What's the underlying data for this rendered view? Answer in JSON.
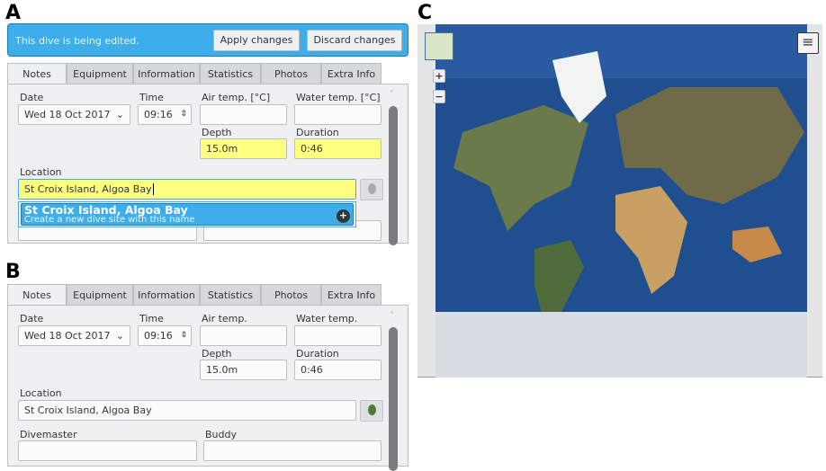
{
  "panels": {
    "a": "A",
    "b": "B",
    "c": "C"
  },
  "banner": {
    "message": "This dive is being edited.",
    "apply": "Apply changes",
    "discard": "Discard changes"
  },
  "tabs": [
    "Notes",
    "Equipment",
    "Information",
    "Statistics",
    "Photos",
    "Extra Info"
  ],
  "a": {
    "date_label": "Date",
    "date": "Wed 18 Oct 2017",
    "time_label": "Time",
    "time": "09:16",
    "air_label": "Air temp. [°C]",
    "water_label": "Water temp. [°C]",
    "depth_label": "Depth",
    "depth": "15.0m",
    "duration_label": "Duration",
    "duration": "0:46",
    "location_label": "Location",
    "location": "St Croix Island, Algoa Bay",
    "suggestion_title": "St Croix Island, Algoa Bay",
    "suggestion_sub": "Create a new dive site with this name"
  },
  "b": {
    "date_label": "Date",
    "date": "Wed 18 Oct 2017",
    "time_label": "Time",
    "time": "09:16",
    "air_label": "Air temp.",
    "water_label": "Water temp.",
    "depth_label": "Depth",
    "depth": "15.0m",
    "duration_label": "Duration",
    "duration": "0:46",
    "location_label": "Location",
    "location": "St Croix Island, Algoa Bay",
    "divemaster_label": "Divemaster",
    "buddy_label": "Buddy"
  },
  "map": {
    "zoom_in": "+",
    "zoom_out": "−",
    "menu_icon": "hamburger-icon",
    "colors": {
      "ocean": "#1f4f8f",
      "highlight": "#ffff80",
      "accent": "#3daee9"
    }
  }
}
